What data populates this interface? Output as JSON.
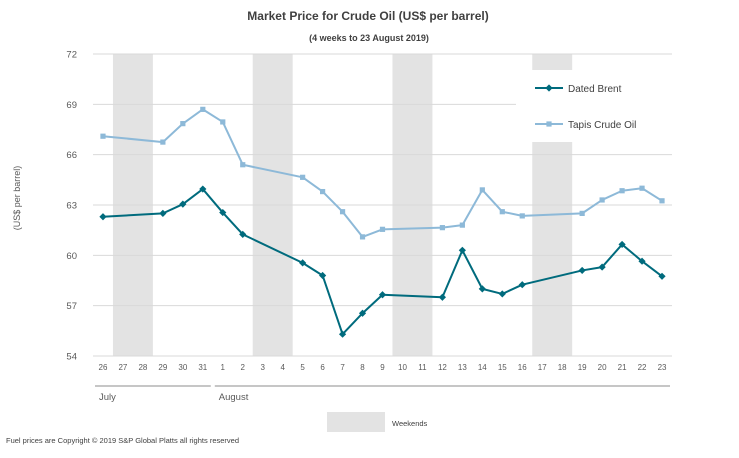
{
  "chart_data": {
    "type": "line",
    "title": "Market Price for Crude Oil (US$ per barrel)",
    "subtitle": "(4 weeks to 23 August 2019)",
    "ylabel": "(US$ per barrel)",
    "xlabel": "",
    "ylim": [
      54,
      72
    ],
    "yticks": [
      "54",
      "57",
      "60",
      "63",
      "66",
      "69",
      "72"
    ],
    "grid": "horizontal",
    "legend_position": "top-right",
    "categories": [
      "26",
      "27",
      "28",
      "29",
      "30",
      "31",
      "1",
      "2",
      "3",
      "4",
      "5",
      "6",
      "7",
      "8",
      "9",
      "10",
      "11",
      "12",
      "13",
      "14",
      "15",
      "16",
      "17",
      "18",
      "19",
      "20",
      "21",
      "22",
      "23"
    ],
    "months": [
      {
        "label": "July",
        "start": "26",
        "end": "31"
      },
      {
        "label": "August",
        "start": "1",
        "end": "23"
      }
    ],
    "weekends": [
      {
        "start": "27",
        "end": "28"
      },
      {
        "start": "3",
        "end": "4"
      },
      {
        "start": "10",
        "end": "11"
      },
      {
        "start": "17",
        "end": "18"
      }
    ],
    "weekend_label": "Weekends",
    "series": [
      {
        "name": "Dated Brent",
        "color": "#006b7d",
        "marker": "diamond",
        "values": [
          62.3,
          null,
          null,
          62.5,
          63.05,
          63.95,
          62.55,
          61.25,
          null,
          null,
          59.55,
          58.8,
          55.3,
          56.55,
          57.65,
          null,
          null,
          57.5,
          60.3,
          58.0,
          57.7,
          58.25,
          null,
          null,
          59.1,
          59.3,
          60.65,
          59.65,
          58.75
        ]
      },
      {
        "name": "Tapis Crude Oil",
        "color": "#8db9d8",
        "marker": "square",
        "values": [
          67.1,
          null,
          null,
          66.75,
          67.85,
          68.7,
          67.95,
          65.4,
          null,
          null,
          64.65,
          63.8,
          62.6,
          61.1,
          61.55,
          null,
          null,
          61.65,
          61.8,
          63.9,
          62.6,
          62.35,
          null,
          null,
          62.5,
          63.3,
          63.85,
          64.0,
          63.25
        ]
      }
    ],
    "footer": "Fuel prices are Copyright © 2019 S&P Global Platts all rights reserved"
  }
}
